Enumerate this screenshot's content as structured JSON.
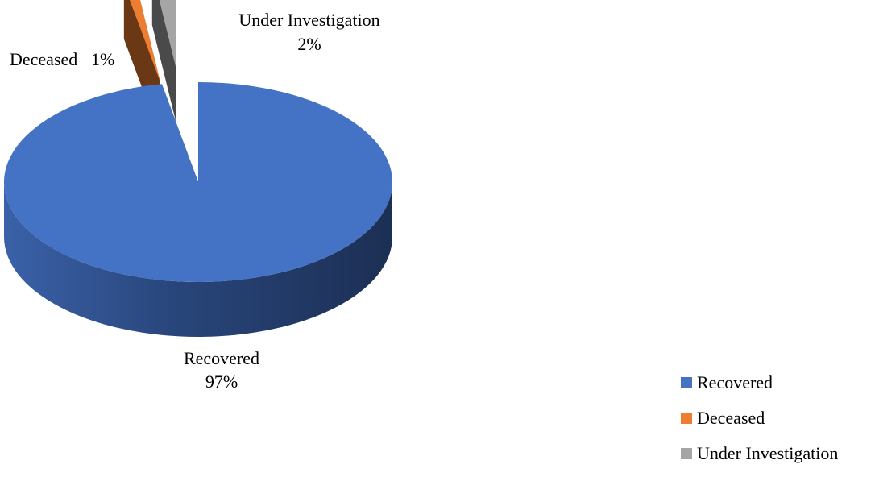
{
  "chart_data": {
    "type": "pie",
    "title": "",
    "three_d": true,
    "exploded": true,
    "slices": [
      {
        "name": "Recovered",
        "value": 97,
        "percent_label": "97%",
        "color": "#4472C4"
      },
      {
        "name": "Deceased",
        "value": 1,
        "percent_label": "1%",
        "color": "#ED7D31"
      },
      {
        "name": "Under Investigation",
        "value": 2,
        "percent_label": "2%",
        "color": "#A5A5A5"
      }
    ],
    "legend": {
      "position": "bottom-right",
      "items": [
        "Recovered",
        "Deceased",
        "Under Investigation"
      ]
    }
  }
}
